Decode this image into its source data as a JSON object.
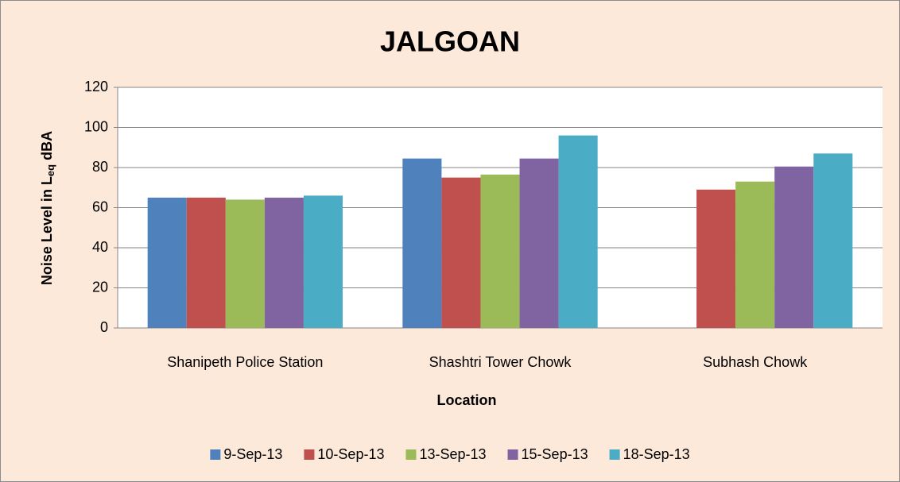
{
  "chart_data": {
    "type": "bar",
    "title": "JALGOAN",
    "x_label": "Location",
    "y_label": [
      "Noise Level in L",
      "eq",
      "dBA"
    ],
    "categories": [
      "Shanipeth Police Station",
      "Shashtri Tower Chowk",
      "Subhash Chowk"
    ],
    "series": [
      {
        "name": "9-Sep-13",
        "color": "#4f81bd",
        "values": [
          65,
          84.5,
          null
        ]
      },
      {
        "name": "10-Sep-13",
        "color": "#c0504d",
        "values": [
          65,
          75,
          69
        ]
      },
      {
        "name": "13-Sep-13",
        "color": "#9bbb59",
        "values": [
          64,
          76.5,
          73
        ]
      },
      {
        "name": "15-Sep-13",
        "color": "#8064a2",
        "values": [
          65,
          84.5,
          80.5
        ]
      },
      {
        "name": "18-Sep-13",
        "color": "#4bacc6",
        "values": [
          66,
          96,
          87
        ]
      }
    ],
    "ylim": [
      0,
      120
    ],
    "yticks": [
      0,
      20,
      40,
      60,
      80,
      100,
      120
    ],
    "grid": true,
    "legend": "bottom"
  }
}
